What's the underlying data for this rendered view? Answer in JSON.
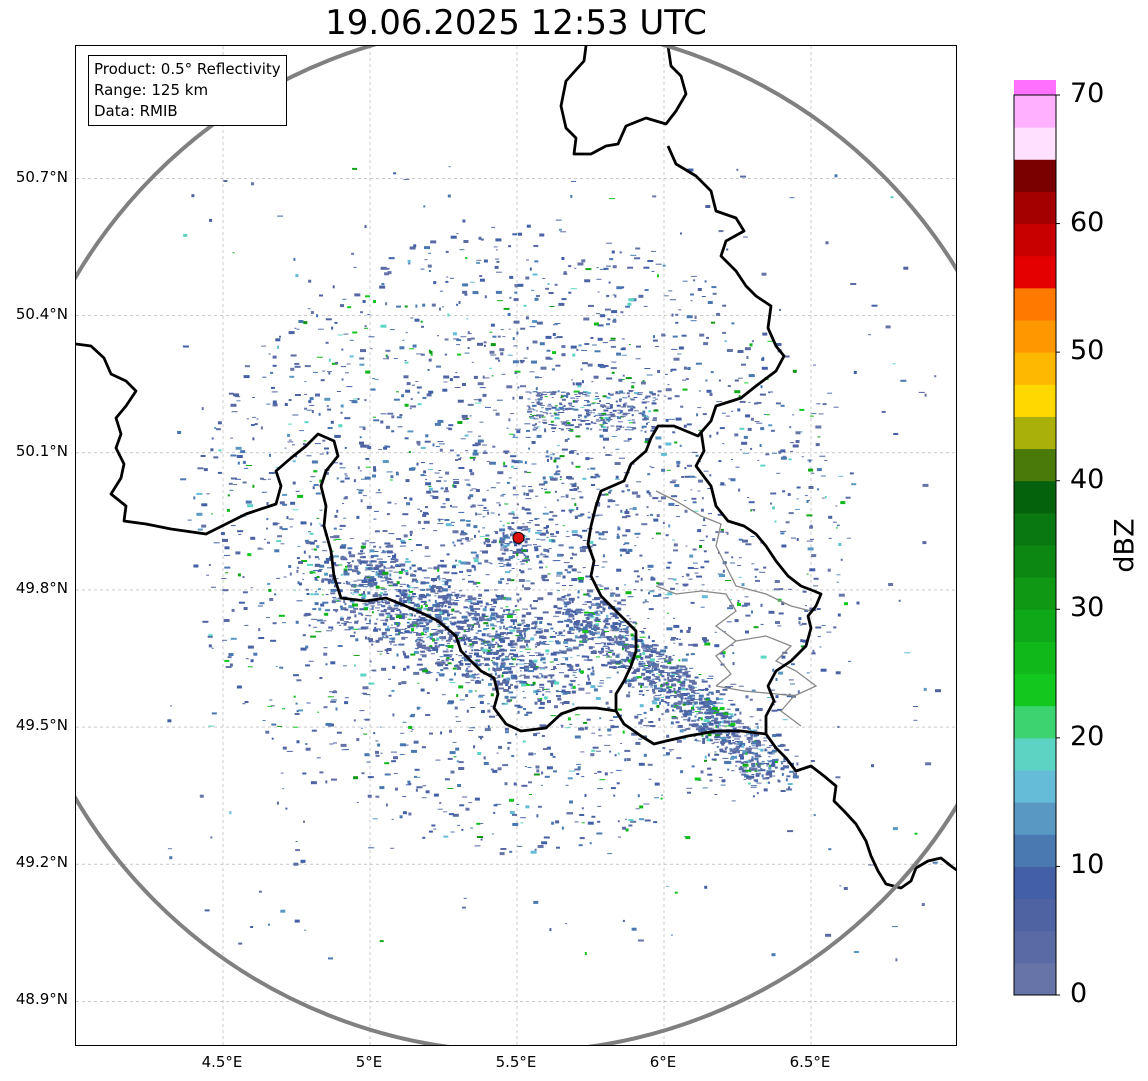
{
  "title": "19.06.2025 12:53 UTC",
  "info_box": {
    "product": "Product: 0.5° Reflectivity",
    "range": "Range: 125 km",
    "data": "Data: RMIB"
  },
  "map": {
    "lon_range": [
      4.0,
      7.0
    ],
    "lat_range": [
      48.8,
      50.99
    ],
    "x_ticks": [
      {
        "value": 4.5,
        "label": "4.5°E"
      },
      {
        "value": 5.0,
        "label": "5°E"
      },
      {
        "value": 5.5,
        "label": "5.5°E"
      },
      {
        "value": 6.0,
        "label": "6°E"
      },
      {
        "value": 6.5,
        "label": "6.5°E"
      }
    ],
    "y_ticks": [
      {
        "value": 48.9,
        "label": "48.9°N"
      },
      {
        "value": 49.2,
        "label": "49.2°N"
      },
      {
        "value": 49.5,
        "label": "49.5°N"
      },
      {
        "value": 49.8,
        "label": "49.8°N"
      },
      {
        "value": 50.1,
        "label": "50.1°N"
      },
      {
        "value": 50.4,
        "label": "50.4°N"
      },
      {
        "value": 50.7,
        "label": "50.7°N"
      }
    ],
    "grid": true,
    "radar_site": {
      "lon": 5.505,
      "lat": 49.914,
      "color": "#dd1111"
    },
    "range_ring": {
      "range_km": 125,
      "color": "#808080"
    },
    "border_color": "#000000",
    "region_border_color": "#888888"
  },
  "colorbar": {
    "units": "dBZ",
    "ticks": [
      {
        "value": 0,
        "label": "0"
      },
      {
        "value": 10,
        "label": "10"
      },
      {
        "value": 20,
        "label": "20"
      },
      {
        "value": 30,
        "label": "30"
      },
      {
        "value": 40,
        "label": "40"
      },
      {
        "value": 50,
        "label": "50"
      },
      {
        "value": 60,
        "label": "60"
      },
      {
        "value": 70,
        "label": "70"
      }
    ],
    "step": 2.5,
    "colors": [
      "#6674a8",
      "#5a6aa4",
      "#4f62a2",
      "#4360a6",
      "#4a78b0",
      "#5a98c4",
      "#64bcd8",
      "#5cd4c4",
      "#3cd470",
      "#12c81e",
      "#10b81a",
      "#0fa818",
      "#0e9814",
      "#0c8812",
      "#0a7810",
      "#05620c",
      "#4a7a0a",
      "#aab00a",
      "#ffd800",
      "#ffb800",
      "#ff9800",
      "#ff7800",
      "#e40000",
      "#c80000",
      "#a40000",
      "#7a0000",
      "#ffe0ff",
      "#ffb0ff",
      "#ff70ff",
      "#ec38ec"
    ]
  }
}
